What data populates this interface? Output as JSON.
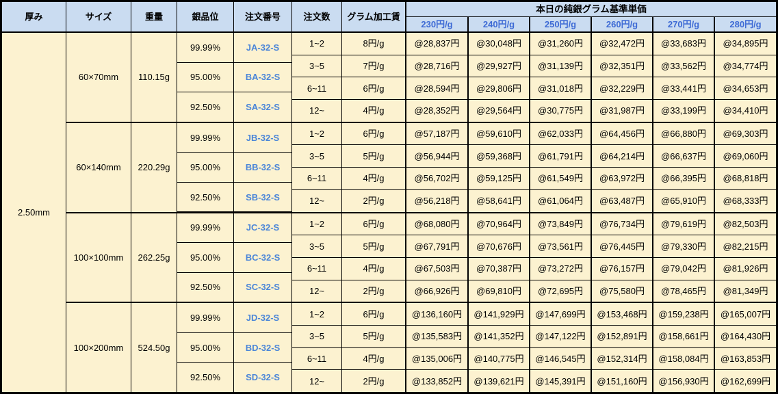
{
  "table": {
    "columns": {
      "thickness": "厚み",
      "size": "サイズ",
      "weight": "重量",
      "purity": "銀品位",
      "order_no": "注文番号",
      "order_qty": "注文数",
      "fee": "グラム加工賃"
    },
    "price_header": {
      "title": "本日の純銀グラム基準単価",
      "rates": [
        "230円/g",
        "240円/g",
        "250円/g",
        "260円/g",
        "270円/g",
        "280円/g"
      ]
    },
    "thickness": "2.50mm",
    "groups": [
      {
        "size": "60×70mm",
        "weight": "110.15g",
        "purities": [
          {
            "purity": "99.99%",
            "code": "JA-32-S"
          },
          {
            "purity": "95.00%",
            "code": "BA-32-S"
          },
          {
            "purity": "92.50%",
            "code": "SA-32-S"
          }
        ],
        "rows": [
          {
            "qty": "1~2",
            "fee": "8円/g",
            "prices": [
              "@28,837円",
              "@30,048円",
              "@31,260円",
              "@32,472円",
              "@33,683円",
              "@34,895円"
            ]
          },
          {
            "qty": "3~5",
            "fee": "7円/g",
            "prices": [
              "@28,716円",
              "@29,927円",
              "@31,139円",
              "@32,351円",
              "@33,562円",
              "@34,774円"
            ]
          },
          {
            "qty": "6~11",
            "fee": "6円/g",
            "prices": [
              "@28,594円",
              "@29,806円",
              "@31,018円",
              "@32,229円",
              "@33,441円",
              "@34,653円"
            ]
          },
          {
            "qty": "12~",
            "fee": "4円/g",
            "prices": [
              "@28,352円",
              "@29,564円",
              "@30,775円",
              "@31,987円",
              "@33,199円",
              "@34,410円"
            ]
          }
        ]
      },
      {
        "size": "60×140mm",
        "weight": "220.29g",
        "purities": [
          {
            "purity": "99.99%",
            "code": "JB-32-S"
          },
          {
            "purity": "95.00%",
            "code": "BB-32-S"
          },
          {
            "purity": "92.50%",
            "code": "SB-32-S"
          }
        ],
        "rows": [
          {
            "qty": "1~2",
            "fee": "6円/g",
            "prices": [
              "@57,187円",
              "@59,610円",
              "@62,033円",
              "@64,456円",
              "@66,880円",
              "@69,303円"
            ]
          },
          {
            "qty": "3~5",
            "fee": "5円/g",
            "prices": [
              "@56,944円",
              "@59,368円",
              "@61,791円",
              "@64,214円",
              "@66,637円",
              "@69,060円"
            ]
          },
          {
            "qty": "6~11",
            "fee": "4円/g",
            "prices": [
              "@56,702円",
              "@59,125円",
              "@61,549円",
              "@63,972円",
              "@66,395円",
              "@68,818円"
            ]
          },
          {
            "qty": "12~",
            "fee": "2円/g",
            "prices": [
              "@56,218円",
              "@58,641円",
              "@61,064円",
              "@63,487円",
              "@65,910円",
              "@68,333円"
            ]
          }
        ]
      },
      {
        "size": "100×100mm",
        "weight": "262.25g",
        "purities": [
          {
            "purity": "99.99%",
            "code": "JC-32-S"
          },
          {
            "purity": "95.00%",
            "code": "BC-32-S"
          },
          {
            "purity": "92.50%",
            "code": "SC-32-S"
          }
        ],
        "rows": [
          {
            "qty": "1~2",
            "fee": "6円/g",
            "prices": [
              "@68,080円",
              "@70,964円",
              "@73,849円",
              "@76,734円",
              "@79,619円",
              "@82,503円"
            ]
          },
          {
            "qty": "3~5",
            "fee": "5円/g",
            "prices": [
              "@67,791円",
              "@70,676円",
              "@73,561円",
              "@76,445円",
              "@79,330円",
              "@82,215円"
            ]
          },
          {
            "qty": "6~11",
            "fee": "4円/g",
            "prices": [
              "@67,503円",
              "@70,387円",
              "@73,272円",
              "@76,157円",
              "@79,042円",
              "@81,926円"
            ]
          },
          {
            "qty": "12~",
            "fee": "2円/g",
            "prices": [
              "@66,926円",
              "@69,810円",
              "@72,695円",
              "@75,580円",
              "@78,465円",
              "@81,349円"
            ]
          }
        ]
      },
      {
        "size": "100×200mm",
        "weight": "524.50g",
        "purities": [
          {
            "purity": "99.99%",
            "code": "JD-32-S"
          },
          {
            "purity": "95.00%",
            "code": "BD-32-S"
          },
          {
            "purity": "92.50%",
            "code": "SD-32-S"
          }
        ],
        "rows": [
          {
            "qty": "1~2",
            "fee": "6円/g",
            "prices": [
              "@136,160円",
              "@141,929円",
              "@147,699円",
              "@153,468円",
              "@159,238円",
              "@165,007円"
            ]
          },
          {
            "qty": "3~5",
            "fee": "5円/g",
            "prices": [
              "@135,583円",
              "@141,352円",
              "@147,122円",
              "@152,891円",
              "@158,661円",
              "@164,430円"
            ]
          },
          {
            "qty": "6~11",
            "fee": "4円/g",
            "prices": [
              "@135,006円",
              "@140,775円",
              "@146,545円",
              "@152,314円",
              "@158,084円",
              "@163,853円"
            ]
          },
          {
            "qty": "12~",
            "fee": "2円/g",
            "prices": [
              "@133,852円",
              "@139,621円",
              "@145,391円",
              "@151,160円",
              "@156,930円",
              "@162,699円"
            ]
          }
        ]
      }
    ],
    "colors": {
      "header_bg": "#CADCF1",
      "body_bg": "#FCF2D0",
      "rate_text": "#3E6BD5",
      "code_text": "#4C86D8",
      "border": "#000000"
    }
  }
}
